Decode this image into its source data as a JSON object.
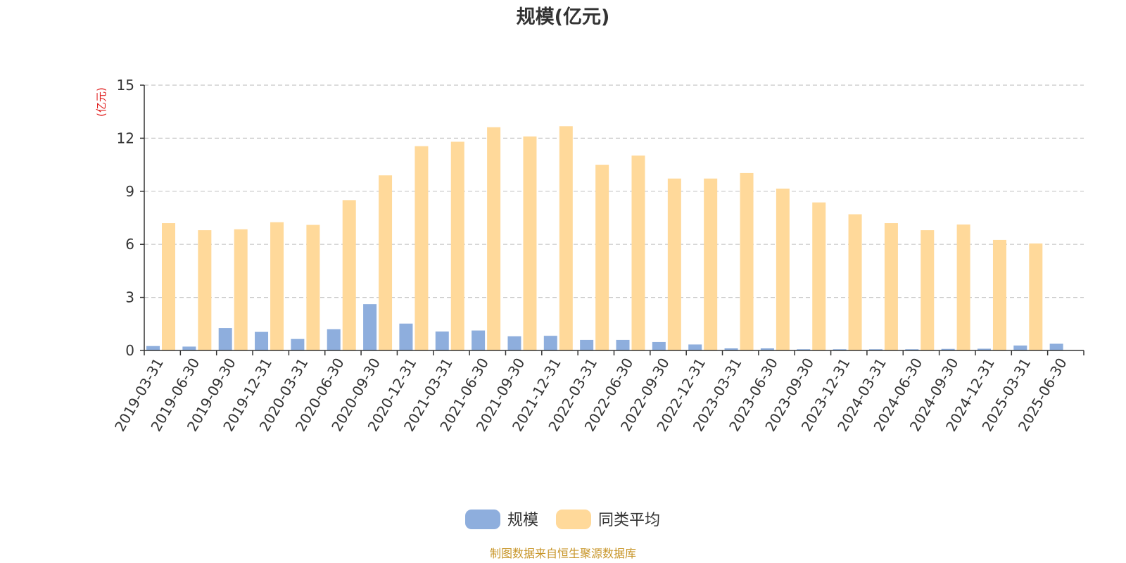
{
  "chart_data": {
    "type": "bar",
    "title": "规模(亿元)",
    "ylabel": "(亿元)",
    "xlabel": "",
    "ylim": [
      0,
      15
    ],
    "yticks": [
      0,
      3,
      6,
      9,
      12,
      15
    ],
    "grid": true,
    "legend_position": "bottom-center",
    "categories": [
      "2019-03-31",
      "2019-06-30",
      "2019-09-30",
      "2019-12-31",
      "2020-03-31",
      "2020-06-30",
      "2020-09-30",
      "2020-12-31",
      "2021-03-31",
      "2021-06-30",
      "2021-09-30",
      "2021-12-31",
      "2022-03-31",
      "2022-06-30",
      "2022-09-30",
      "2022-12-31",
      "2023-03-31",
      "2023-06-30",
      "2023-09-30",
      "2023-12-31",
      "2024-03-31",
      "2024-06-30",
      "2024-09-30",
      "2024-12-31",
      "2025-03-31",
      "2025-06-30"
    ],
    "series": [
      {
        "name": "规模",
        "color": "#8eaedd",
        "values": [
          0.25,
          0.22,
          1.27,
          1.05,
          0.65,
          1.2,
          2.62,
          1.52,
          1.07,
          1.13,
          0.8,
          0.83,
          0.6,
          0.6,
          0.48,
          0.34,
          0.12,
          0.12,
          0.07,
          0.07,
          0.07,
          0.07,
          0.09,
          0.1,
          0.28,
          0.38
        ]
      },
      {
        "name": "同类平均",
        "color": "#ffd99a",
        "values": [
          7.2,
          6.8,
          6.85,
          7.25,
          7.1,
          8.5,
          9.9,
          11.55,
          11.8,
          12.62,
          12.1,
          12.68,
          10.5,
          11.02,
          9.72,
          9.72,
          10.03,
          9.15,
          8.37,
          7.7,
          7.2,
          6.8,
          7.12,
          6.25,
          6.05,
          null
        ]
      }
    ]
  },
  "colors": {
    "text": "#333333",
    "axis": "#333333",
    "grid": "#c8c8c8",
    "unit_label": "#e02020",
    "source_text": "#c8962a"
  },
  "source_note": "制图数据来自恒生聚源数据库"
}
